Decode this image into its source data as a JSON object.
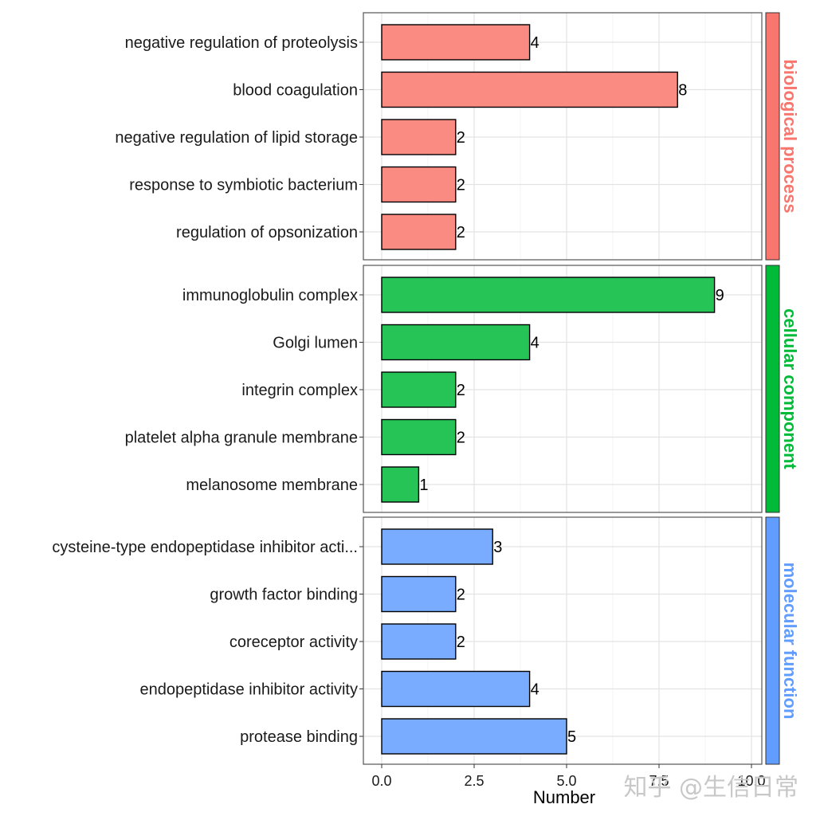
{
  "chart_data": {
    "type": "bar",
    "orientation": "horizontal",
    "xlabel": "Number",
    "xlim": [
      0,
      10
    ],
    "xticks": [
      0,
      2.5,
      5.0,
      7.5,
      10.0
    ],
    "xtick_labels": [
      "0.0",
      "2.5",
      "5.0",
      "7.5",
      "10.0"
    ],
    "grid": true,
    "facets": [
      {
        "name": "biological process",
        "color": "#F8766D",
        "categories": [
          "negative regulation of proteolysis",
          "blood coagulation",
          "negative regulation of lipid storage",
          "response to symbiotic bacterium",
          "regulation of opsonization"
        ],
        "values": [
          4,
          8,
          2,
          2,
          2
        ]
      },
      {
        "name": "cellular component",
        "color": "#00BA38",
        "categories": [
          "immunoglobulin complex",
          "Golgi lumen",
          "integrin complex",
          "platelet alpha granule membrane",
          "melanosome membrane"
        ],
        "values": [
          9,
          4,
          2,
          2,
          1
        ]
      },
      {
        "name": "molecular function",
        "color": "#619CFF",
        "categories": [
          "cysteine-type endopeptidase inhibitor acti...",
          "growth factor binding",
          "coreceptor activity",
          "endopeptidase inhibitor activity",
          "protease binding"
        ],
        "values": [
          3,
          2,
          2,
          4,
          5
        ]
      }
    ]
  },
  "watermark": "知乎 @生信日常"
}
